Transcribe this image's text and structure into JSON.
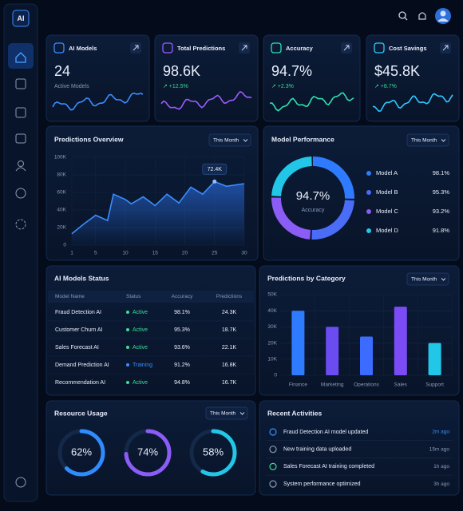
{
  "logo": "AI",
  "kpis": [
    {
      "title": "AI Models",
      "value": "24",
      "subtitle": "Active Models",
      "color": "#3b8dff"
    },
    {
      "title": "Total Predictions",
      "value": "98.6K",
      "change": "↗ +12.5%",
      "color": "#9b5cff"
    },
    {
      "title": "Accuracy",
      "value": "94.7%",
      "change": "↗ +2.3%",
      "color": "#2fe0b0"
    },
    {
      "title": "Cost Savings",
      "value": "$45.8K",
      "change": "↗ +8.7%",
      "color": "#2fc8ff"
    }
  ],
  "predictions_overview": {
    "title": "Predictions Overview",
    "filter": "This Month",
    "color": "#3b8dff",
    "x": [
      1,
      3,
      5,
      7,
      8,
      10,
      11,
      13,
      15,
      17,
      19,
      21,
      23,
      25,
      27,
      30
    ],
    "values": [
      13,
      24,
      34,
      28,
      58,
      52,
      47,
      55,
      45,
      58,
      48,
      66,
      58,
      72.4,
      67,
      70
    ],
    "xlim": [
      1,
      30
    ],
    "xticks": [
      1,
      5,
      10,
      15,
      20,
      25,
      30
    ],
    "ylim": [
      0,
      100
    ],
    "yticks": [
      {
        "value": 0,
        "label": "0"
      },
      {
        "value": 20,
        "label": "20K"
      },
      {
        "value": 40,
        "label": "40K"
      },
      {
        "value": 60,
        "label": "60K"
      },
      {
        "value": 80,
        "label": "80K"
      },
      {
        "value": 100,
        "label": "100K"
      }
    ],
    "annotation": {
      "x": 25,
      "value": 72.4,
      "label": "72.4K"
    }
  },
  "model_performance": {
    "title": "Model Performance",
    "filter": "This Month",
    "center_value": "94.7%",
    "center_label": "Accuracy",
    "models": [
      {
        "name": "Model A",
        "value": 98.1,
        "label": "98.1%",
        "color": "#2f7bff"
      },
      {
        "name": "Model B",
        "value": 95.3,
        "label": "95.3%",
        "color": "#4a6cf7"
      },
      {
        "name": "Model C",
        "value": 93.2,
        "label": "93.2%",
        "color": "#8b5cf6"
      },
      {
        "name": "Model D",
        "value": 91.8,
        "label": "91.8%",
        "color": "#22c7e8"
      }
    ]
  },
  "models_status": {
    "title": "AI Models Status",
    "headers": [
      "Model Name",
      "Status",
      "Accuracy",
      "Predictions"
    ],
    "rows": [
      [
        "Fraud Detection AI",
        "Active",
        "98.1%",
        "24.3K"
      ],
      [
        "Customer Churn AI",
        "Active",
        "95.3%",
        "18.7K"
      ],
      [
        "Sales Forecast AI",
        "Active",
        "93.6%",
        "22.1K"
      ],
      [
        "Demand Prediction AI",
        "Training",
        "91.2%",
        "16.8K"
      ],
      [
        "Recommendation AI",
        "Active",
        "94.8%",
        "16.7K"
      ]
    ],
    "status_colors": {
      "Active": "#3ddc97",
      "Training": "#3b8dff"
    }
  },
  "predictions_by_category": {
    "title": "Predictions by Category",
    "filter": "This Month",
    "categories": [
      "Finance",
      "Marketing",
      "Operations",
      "Sales",
      "Support"
    ],
    "values": [
      40,
      30,
      24,
      42.5,
      20
    ],
    "colors": [
      "#2f7bff",
      "#6a4cf0",
      "#3b6cff",
      "#7b4cf5",
      "#22c7e8"
    ],
    "ylim": [
      0,
      50
    ],
    "yticks": [
      {
        "value": 0,
        "label": "0"
      },
      {
        "value": 10,
        "label": "10K"
      },
      {
        "value": 20,
        "label": "20K"
      },
      {
        "value": 30,
        "label": "30K"
      },
      {
        "value": 40,
        "label": "40K"
      },
      {
        "value": 50,
        "label": "50K"
      }
    ]
  },
  "resource_usage": {
    "title": "Resource Usage",
    "filter": "This Month",
    "gauges": [
      {
        "value": 62,
        "label": "62%",
        "color": "#2f8cff"
      },
      {
        "value": 74,
        "label": "74%",
        "color": "#8b5cf6"
      },
      {
        "value": 58,
        "label": "58%",
        "color": "#22c7e8"
      }
    ]
  },
  "recent_activities": {
    "title": "Recent Activities",
    "items": [
      {
        "text": "Fraud Detection AI model updated",
        "time": "2m ago"
      },
      {
        "text": "New training data uploaded",
        "time": "15m ago"
      },
      {
        "text": "Sales Forecast AI training completed",
        "time": "1h ago"
      },
      {
        "text": "System performance optimized",
        "time": "3h ago"
      }
    ]
  }
}
